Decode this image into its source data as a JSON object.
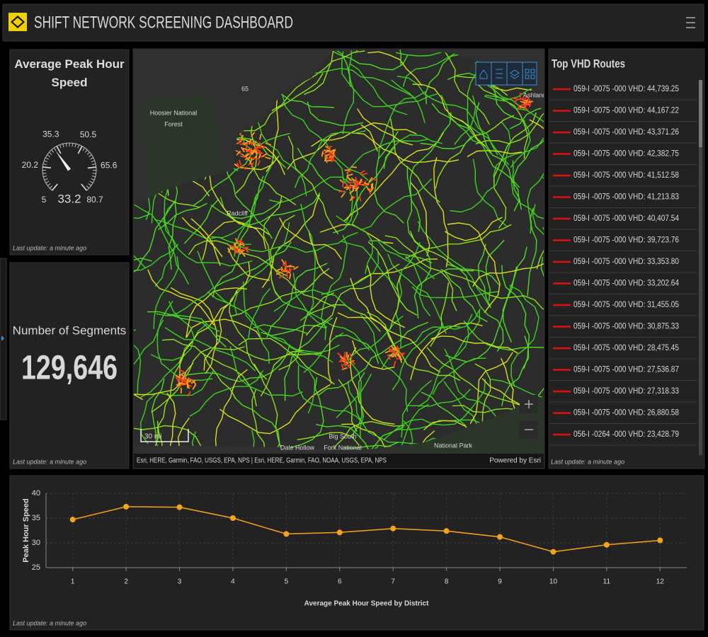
{
  "header": {
    "title": "SHIFT NETWORK SCREENING DASHBOARD"
  },
  "gauge": {
    "title": "Average Peak Hour Speed",
    "value": 33.2,
    "lim": [
      5,
      80.7
    ],
    "ticks": [
      5,
      20.2,
      35.3,
      50.5,
      65.6,
      80.7
    ],
    "footer": "Last update: a minute ago"
  },
  "indicator": {
    "title": "Number of Segments",
    "value": "129,646",
    "footer": "Last update: a minute ago"
  },
  "map": {
    "labels": [
      "Hoosier National",
      "Forest",
      "Radcliff",
      "Ashland",
      "65",
      "Dale Hollow",
      "Big South",
      "Fork National",
      "National Park"
    ],
    "scale": "30 mi",
    "attribution": "Esri, HERE, Garmin, FAO, USGS, EPA, NPS | Esri, HERE, Garmin, FAO, NOAA, USGS, EPA, NPS",
    "credit": "Powered by Esri"
  },
  "routes": {
    "title": "Top VHD Routes",
    "items": [
      "059-I -0075 -000  VHD: 44,739.25",
      "059-I -0075 -000  VHD: 44,167.22",
      "059-I -0075 -000  VHD: 43,371.26",
      "059-I -0075 -000  VHD: 42,382.75",
      "059-I -0075 -000  VHD: 41,512.58",
      "059-I -0075 -000  VHD: 41,213.83",
      "059-I -0075 -000  VHD: 40,407.54",
      "059-I -0075 -000  VHD: 39,723.76",
      "059-I -0075 -000  VHD: 33,353.80",
      "059-I -0075 -000  VHD: 33,202.64",
      "059-I -0075 -000  VHD: 31,455.05",
      "059-I -0075 -000  VHD: 30,875.33",
      "059-I -0075 -000  VHD: 28,475.45",
      "059-I -0075 -000  VHD: 27,536.87",
      "059-I -0075 -000  VHD: 27,318.33",
      "059-I -0075 -000  VHD: 26,880.58",
      "056-I -0264 -000  VHD: 23,428.79"
    ],
    "footer": "Last update: a minute ago"
  },
  "chart_data": {
    "type": "line",
    "x": [
      1,
      2,
      3,
      4,
      5,
      6,
      7,
      8,
      9,
      10,
      11,
      12
    ],
    "values": [
      34.7,
      37.3,
      37.2,
      35.0,
      31.8,
      32.1,
      32.9,
      32.4,
      31.2,
      28.2,
      29.6,
      30.5
    ],
    "color": "#f5a31a",
    "xlim": [
      0.5,
      12.5
    ],
    "xticks": [
      1,
      2,
      3,
      4,
      5,
      6,
      7,
      8,
      9,
      10,
      11,
      12
    ],
    "ylim": [
      25,
      40
    ],
    "yticks": [
      25,
      30,
      35,
      40
    ],
    "grid": true,
    "xlabel": "Average Peak Hour Speed by District",
    "ylabel": "Peak Hour Speed"
  },
  "chart_panel": {
    "footer": "Last update: a minute ago"
  }
}
